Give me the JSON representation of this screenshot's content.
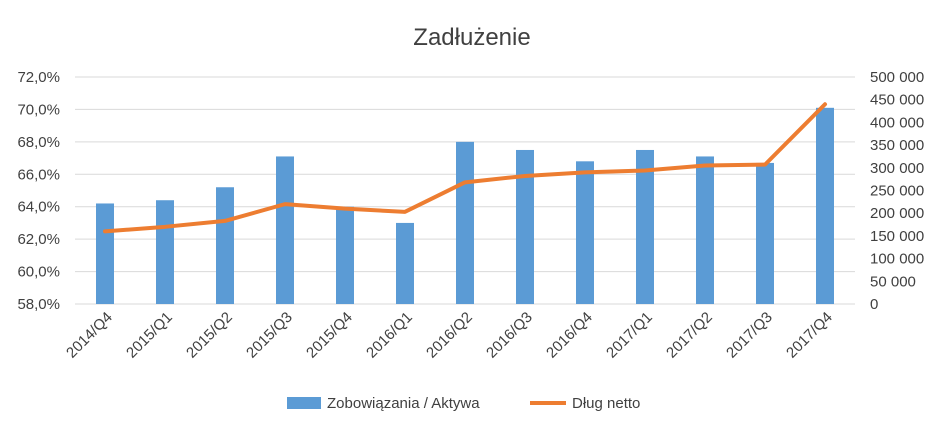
{
  "chart_data": {
    "type": "bar",
    "title": "Zadłużenie",
    "categories": [
      "2014/Q4",
      "2015/Q1",
      "2015/Q2",
      "2015/Q3",
      "2015/Q4",
      "2016/Q1",
      "2016/Q2",
      "2016/Q3",
      "2016/Q4",
      "2017/Q1",
      "2017/Q2",
      "2017/Q3",
      "2017/Q4"
    ],
    "y_left": {
      "min": 58,
      "max": 72,
      "step": 2,
      "tick_labels": [
        "58,0%",
        "60,0%",
        "62,0%",
        "64,0%",
        "66,0%",
        "68,0%",
        "70,0%",
        "72,0%"
      ]
    },
    "y_right": {
      "min": 0,
      "max": 500000,
      "step": 50000,
      "tick_labels": [
        "0",
        "50 000",
        "100 000",
        "150 000",
        "200 000",
        "250 000",
        "300 000",
        "350 000",
        "400 000",
        "450 000",
        "500 000"
      ]
    },
    "series": [
      {
        "name": "Zobowiązania / Aktywa",
        "type": "bar",
        "axis": "left",
        "color": "#5b9bd5",
        "values": [
          64.2,
          64.4,
          65.2,
          67.1,
          64.0,
          63.0,
          68.0,
          67.5,
          66.8,
          67.5,
          67.1,
          66.7,
          70.1
        ]
      },
      {
        "name": "Dług netto",
        "type": "line",
        "axis": "right",
        "color": "#ed7d31",
        "values": [
          160000,
          170000,
          183000,
          220000,
          210000,
          203000,
          268000,
          282000,
          290000,
          294000,
          305000,
          307000,
          440000
        ]
      }
    ],
    "grid": true,
    "legend": "bottom"
  }
}
